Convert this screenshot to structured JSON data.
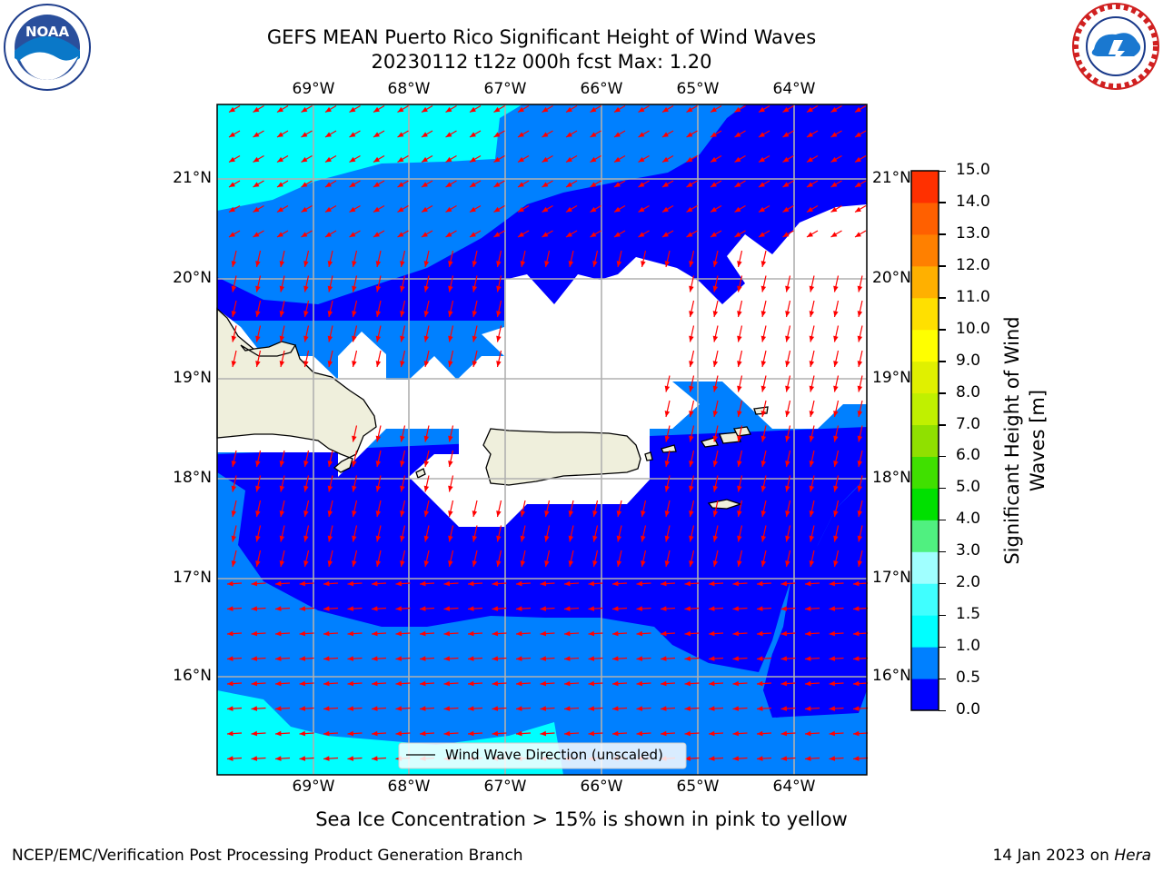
{
  "title": {
    "line1": "GEFS MEAN Puerto Rico Significant Height of Wind Waves",
    "line2": "20230112 t12z 000h fcst   Max: 1.20"
  },
  "logos": {
    "left": "noaa-logo",
    "right": "nws-logo"
  },
  "map": {
    "lon_labels": [
      "69°W",
      "68°W",
      "67°W",
      "66°W",
      "65°W",
      "64°W"
    ],
    "lat_labels": [
      "21°N",
      "20°N",
      "19°N",
      "18°N",
      "17°N",
      "16°N"
    ],
    "legend_label": "Wind Wave Direction (unscaled)",
    "colors": {
      "level_0": "#0000ff",
      "level_05": "#0080ff",
      "level_10": "#00ffff",
      "land": "#efefdc",
      "arrows": "#ff0000"
    }
  },
  "colorbar": {
    "title_line1": "Significant Height of Wind",
    "title_line2": "Waves [m]",
    "ticks": [
      "15.0",
      "14.0",
      "13.0",
      "12.0",
      "11.0",
      "10.0",
      "9.0",
      "8.0",
      "7.0",
      "6.0",
      "5.0",
      "4.0",
      "3.0",
      "2.0",
      "1.5",
      "1.0",
      "0.5",
      "0.0"
    ],
    "colors": [
      "#0000ff",
      "#0080ff",
      "#00ffff",
      "#40ffff",
      "#a0ffff",
      "#50f080",
      "#00e000",
      "#40e000",
      "#90e000",
      "#c0f000",
      "#e0f000",
      "#ffff00",
      "#ffe000",
      "#ffb000",
      "#ff8000",
      "#ff6000",
      "#ff3000"
    ]
  },
  "caption": "Sea Ice Concentration > 15% is shown in pink to yellow",
  "footer": {
    "left": "NCEP/EMC/Verification Post Processing Product Generation Branch",
    "right_prefix": "14 Jan 2023 on ",
    "right_host": "Hera"
  }
}
